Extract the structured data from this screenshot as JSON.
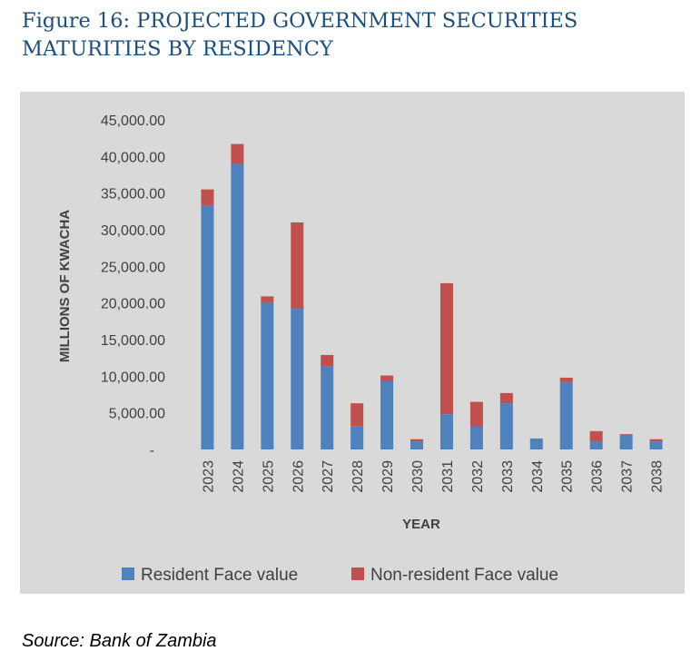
{
  "figure": {
    "title_line1": "Figure 16: PROJECTED GOVERNMENT SECURITIES",
    "title_line2": "MATURITIES BY RESIDENCY",
    "source": "Source: Bank of Zambia"
  },
  "colors": {
    "resident": "#4F81BD",
    "non_resident": "#C0504D",
    "panel_bg": "#D9D9D9",
    "title": "#1F4E79"
  },
  "chart_data": {
    "type": "bar",
    "stacked": true,
    "categories": [
      "2023",
      "2024",
      "2025",
      "2026",
      "2027",
      "2028",
      "2029",
      "2030",
      "2031",
      "2032",
      "2033",
      "2034",
      "2035",
      "2036",
      "2037",
      "2038"
    ],
    "series": [
      {
        "name": "Resident Face value",
        "values": [
          33300,
          39000,
          20100,
          19200,
          11300,
          3200,
          9300,
          1100,
          4800,
          3100,
          6300,
          1500,
          9200,
          1100,
          2000,
          1100
        ]
      },
      {
        "name": "Non-resident Face value",
        "values": [
          2200,
          2700,
          800,
          11800,
          1600,
          3100,
          800,
          300,
          17900,
          3400,
          1400,
          0,
          600,
          1400,
          100,
          300
        ]
      }
    ],
    "xlabel": "YEAR",
    "ylabel": "MILLIONS OF KWACHA",
    "ylim": [
      0,
      45000
    ],
    "yticks": [
      "-",
      "5,000.00",
      "10,000.00",
      "15,000.00",
      "20,000.00",
      "25,000.00",
      "30,000.00",
      "35,000.00",
      "40,000.00",
      "45,000.00"
    ],
    "grid": false,
    "legend_position": "bottom"
  }
}
